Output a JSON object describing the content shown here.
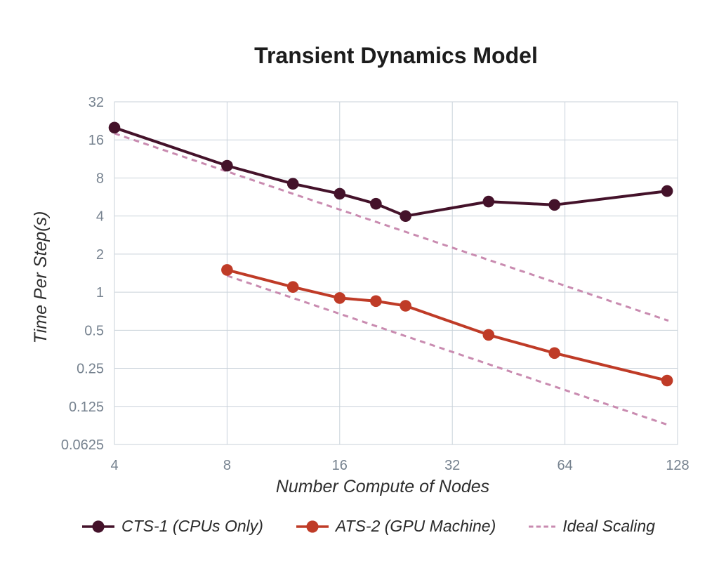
{
  "chart_data": {
    "type": "line",
    "title": "Transient Dynamics Model",
    "xlabel": "Number Compute of Nodes",
    "ylabel": "Time Per Step(s)",
    "x_scale": "log2",
    "y_scale": "log2",
    "x_range": [
      4,
      128
    ],
    "y_range": [
      0.0625,
      32
    ],
    "grid": true,
    "legend_position": "bottom",
    "x_ticks": [
      {
        "value": 4,
        "label": "4"
      },
      {
        "value": 8,
        "label": "8"
      },
      {
        "value": 16,
        "label": "16"
      },
      {
        "value": 32,
        "label": "32"
      },
      {
        "value": 64,
        "label": "64"
      },
      {
        "value": 128,
        "label": "128"
      }
    ],
    "y_ticks": [
      {
        "value": 32,
        "label": "32"
      },
      {
        "value": 16,
        "label": "16"
      },
      {
        "value": 8,
        "label": "8"
      },
      {
        "value": 4,
        "label": "4"
      },
      {
        "value": 2,
        "label": "2"
      },
      {
        "value": 1,
        "label": "1"
      },
      {
        "value": 0.5,
        "label": "0.5"
      },
      {
        "value": 0.25,
        "label": "0.25"
      },
      {
        "value": 0.125,
        "label": "0.125"
      },
      {
        "value": 0.0625,
        "label": "0.0625"
      }
    ],
    "series": [
      {
        "id": "cts-1",
        "name": "CTS-1 (CPUs Only)",
        "color": "#44122a",
        "marker": "circle",
        "x": [
          4,
          8,
          12,
          16,
          20,
          24,
          40,
          60,
          120
        ],
        "y": [
          20,
          10,
          7.2,
          6,
          5,
          4,
          5.2,
          4.9,
          6.3
        ]
      },
      {
        "id": "ats-2",
        "name": "ATS-2 (GPU Machine)",
        "color": "#bf3b27",
        "marker": "circle",
        "x": [
          8,
          12,
          16,
          20,
          24,
          40,
          60,
          120
        ],
        "y": [
          1.5,
          1.1,
          0.9,
          0.85,
          0.78,
          0.46,
          0.33,
          0.2
        ]
      }
    ],
    "ideal": {
      "name": "Ideal Scaling",
      "color": "#c98bb0",
      "style": "dashed",
      "lines": [
        {
          "x": [
            4,
            121
          ],
          "y": [
            18,
            0.595
          ]
        },
        {
          "x": [
            8,
            121
          ],
          "y": [
            1.35,
            0.089
          ]
        }
      ]
    }
  },
  "legend": {
    "items": [
      {
        "id": "cts-1",
        "label": "CTS-1 (CPUs Only)",
        "marker": "line-dot",
        "color": "#44122a"
      },
      {
        "id": "ats-2",
        "label": "ATS-2 (GPU Machine)",
        "marker": "line-dot",
        "color": "#bf3b27"
      },
      {
        "id": "ideal-scaling",
        "label": "Ideal Scaling",
        "marker": "dashes",
        "color": "#c98bb0"
      }
    ]
  },
  "colors": {
    "grid": "#c9d2da",
    "tick_label": "#76828f",
    "axis_title": "#2e2e2e",
    "title": "#1c1c1c",
    "background": "#ffffff"
  }
}
